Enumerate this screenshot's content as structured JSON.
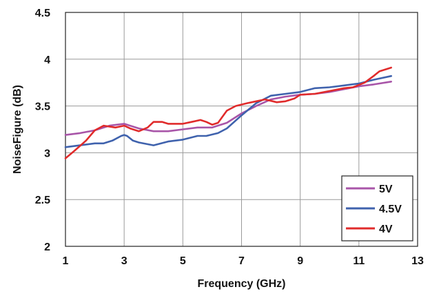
{
  "chart_data": {
    "type": "line",
    "xlabel": "Frequency (GHz)",
    "ylabel": "NoiseFigure (dB)",
    "xlim": [
      1,
      13
    ],
    "ylim": [
      2,
      4.5
    ],
    "x_ticks": [
      "1",
      "3",
      "5",
      "7",
      "9",
      "11",
      "13"
    ],
    "y_ticks": [
      "2",
      "2.5",
      "3",
      "3.5",
      "4",
      "4.5"
    ],
    "grid": true,
    "legend_position": "bottom-right",
    "series": [
      {
        "name": "5V",
        "color": "#a855a8",
        "points": [
          [
            1,
            3.19
          ],
          [
            1.5,
            3.21
          ],
          [
            2,
            3.24
          ],
          [
            2.5,
            3.29
          ],
          [
            3,
            3.31
          ],
          [
            3.2,
            3.29
          ],
          [
            3.5,
            3.26
          ],
          [
            4,
            3.23
          ],
          [
            4.5,
            3.23
          ],
          [
            5,
            3.25
          ],
          [
            5.5,
            3.27
          ],
          [
            6,
            3.27
          ],
          [
            6.5,
            3.32
          ],
          [
            7,
            3.42
          ],
          [
            7.5,
            3.5
          ],
          [
            8,
            3.57
          ],
          [
            8.5,
            3.6
          ],
          [
            9,
            3.62
          ],
          [
            9.5,
            3.63
          ],
          [
            10,
            3.65
          ],
          [
            10.5,
            3.68
          ],
          [
            11,
            3.71
          ],
          [
            11.5,
            3.73
          ],
          [
            12.1,
            3.76
          ]
        ]
      },
      {
        "name": "4.5V",
        "color": "#3f62ad",
        "points": [
          [
            1,
            3.06
          ],
          [
            1.5,
            3.08
          ],
          [
            2,
            3.1
          ],
          [
            2.3,
            3.1
          ],
          [
            2.6,
            3.13
          ],
          [
            2.9,
            3.18
          ],
          [
            3.0,
            3.19
          ],
          [
            3.1,
            3.18
          ],
          [
            3.3,
            3.13
          ],
          [
            3.5,
            3.11
          ],
          [
            4,
            3.08
          ],
          [
            4.5,
            3.12
          ],
          [
            5,
            3.14
          ],
          [
            5.5,
            3.18
          ],
          [
            5.8,
            3.18
          ],
          [
            6.2,
            3.21
          ],
          [
            6.5,
            3.26
          ],
          [
            7,
            3.4
          ],
          [
            7.5,
            3.53
          ],
          [
            8,
            3.61
          ],
          [
            8.5,
            3.63
          ],
          [
            9,
            3.65
          ],
          [
            9.5,
            3.69
          ],
          [
            10,
            3.7
          ],
          [
            10.5,
            3.72
          ],
          [
            11,
            3.74
          ],
          [
            11.5,
            3.78
          ],
          [
            12.1,
            3.82
          ]
        ]
      },
      {
        "name": "4V",
        "color": "#e02b2b",
        "points": [
          [
            1,
            2.94
          ],
          [
            1.3,
            3.02
          ],
          [
            1.7,
            3.13
          ],
          [
            2.0,
            3.24
          ],
          [
            2.3,
            3.29
          ],
          [
            2.7,
            3.27
          ],
          [
            3.0,
            3.29
          ],
          [
            3.2,
            3.26
          ],
          [
            3.5,
            3.23
          ],
          [
            3.8,
            3.27
          ],
          [
            4.0,
            3.33
          ],
          [
            4.3,
            3.33
          ],
          [
            4.5,
            3.31
          ],
          [
            5.0,
            3.31
          ],
          [
            5.3,
            3.33
          ],
          [
            5.6,
            3.35
          ],
          [
            5.8,
            3.33
          ],
          [
            6.0,
            3.3
          ],
          [
            6.2,
            3.32
          ],
          [
            6.5,
            3.45
          ],
          [
            6.8,
            3.5
          ],
          [
            7.2,
            3.53
          ],
          [
            7.5,
            3.55
          ],
          [
            7.8,
            3.57
          ],
          [
            8.2,
            3.54
          ],
          [
            8.5,
            3.55
          ],
          [
            8.8,
            3.58
          ],
          [
            9,
            3.62
          ],
          [
            9.5,
            3.63
          ],
          [
            10,
            3.66
          ],
          [
            10.5,
            3.69
          ],
          [
            10.8,
            3.7
          ],
          [
            11.2,
            3.75
          ],
          [
            11.5,
            3.82
          ],
          [
            11.7,
            3.87
          ],
          [
            12,
            3.9
          ],
          [
            12.1,
            3.91
          ]
        ]
      }
    ]
  }
}
